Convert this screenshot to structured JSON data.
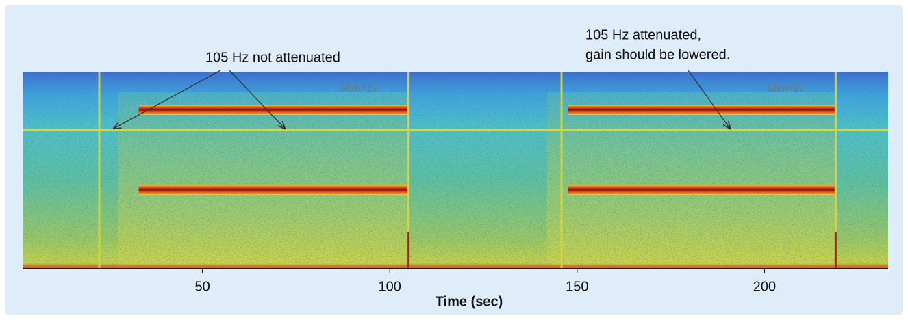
{
  "chart_data": {
    "type": "spectrogram",
    "xlabel": "Time (sec)",
    "xlim": [
      2,
      233
    ],
    "xticks": [
      50,
      100,
      150,
      200
    ],
    "stimuli": [
      {
        "label": "Stim=1v",
        "start": 33,
        "end": 105
      },
      {
        "label": "Stim=2v",
        "start": 147.5,
        "end": 219
      }
    ],
    "annotations": [
      {
        "lines": [
          "105 Hz not attenuated"
        ]
      },
      {
        "lines": [
          "105 Hz attenuated,",
          "gain should be lowered."
        ]
      }
    ]
  }
}
